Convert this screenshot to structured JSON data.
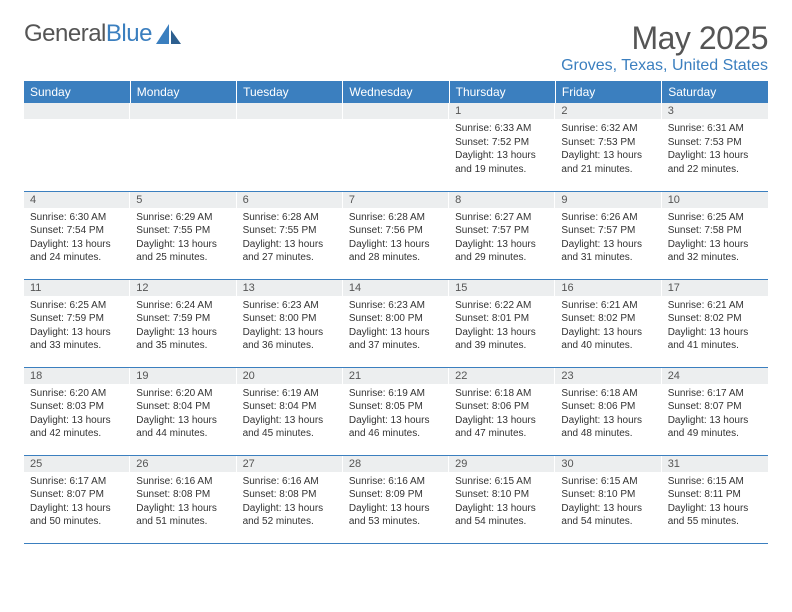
{
  "brand": {
    "part1": "General",
    "part2": "Blue"
  },
  "title": "May 2025",
  "location": "Groves, Texas, United States",
  "weekdays": [
    "Sunday",
    "Monday",
    "Tuesday",
    "Wednesday",
    "Thursday",
    "Friday",
    "Saturday"
  ],
  "colors": {
    "header_bg": "#3b7fbf",
    "header_text": "#ffffff",
    "daynum_bg": "#eceeef",
    "border": "#3b7fbf",
    "brand_blue": "#3b7fbf",
    "text": "#333333",
    "title_text": "#555555",
    "background": "#ffffff"
  },
  "weeks": [
    [
      null,
      null,
      null,
      null,
      {
        "n": "1",
        "sr": "6:33 AM",
        "ss": "7:52 PM",
        "dl": "13 hours and 19 minutes."
      },
      {
        "n": "2",
        "sr": "6:32 AM",
        "ss": "7:53 PM",
        "dl": "13 hours and 21 minutes."
      },
      {
        "n": "3",
        "sr": "6:31 AM",
        "ss": "7:53 PM",
        "dl": "13 hours and 22 minutes."
      }
    ],
    [
      {
        "n": "4",
        "sr": "6:30 AM",
        "ss": "7:54 PM",
        "dl": "13 hours and 24 minutes."
      },
      {
        "n": "5",
        "sr": "6:29 AM",
        "ss": "7:55 PM",
        "dl": "13 hours and 25 minutes."
      },
      {
        "n": "6",
        "sr": "6:28 AM",
        "ss": "7:55 PM",
        "dl": "13 hours and 27 minutes."
      },
      {
        "n": "7",
        "sr": "6:28 AM",
        "ss": "7:56 PM",
        "dl": "13 hours and 28 minutes."
      },
      {
        "n": "8",
        "sr": "6:27 AM",
        "ss": "7:57 PM",
        "dl": "13 hours and 29 minutes."
      },
      {
        "n": "9",
        "sr": "6:26 AM",
        "ss": "7:57 PM",
        "dl": "13 hours and 31 minutes."
      },
      {
        "n": "10",
        "sr": "6:25 AM",
        "ss": "7:58 PM",
        "dl": "13 hours and 32 minutes."
      }
    ],
    [
      {
        "n": "11",
        "sr": "6:25 AM",
        "ss": "7:59 PM",
        "dl": "13 hours and 33 minutes."
      },
      {
        "n": "12",
        "sr": "6:24 AM",
        "ss": "7:59 PM",
        "dl": "13 hours and 35 minutes."
      },
      {
        "n": "13",
        "sr": "6:23 AM",
        "ss": "8:00 PM",
        "dl": "13 hours and 36 minutes."
      },
      {
        "n": "14",
        "sr": "6:23 AM",
        "ss": "8:00 PM",
        "dl": "13 hours and 37 minutes."
      },
      {
        "n": "15",
        "sr": "6:22 AM",
        "ss": "8:01 PM",
        "dl": "13 hours and 39 minutes."
      },
      {
        "n": "16",
        "sr": "6:21 AM",
        "ss": "8:02 PM",
        "dl": "13 hours and 40 minutes."
      },
      {
        "n": "17",
        "sr": "6:21 AM",
        "ss": "8:02 PM",
        "dl": "13 hours and 41 minutes."
      }
    ],
    [
      {
        "n": "18",
        "sr": "6:20 AM",
        "ss": "8:03 PM",
        "dl": "13 hours and 42 minutes."
      },
      {
        "n": "19",
        "sr": "6:20 AM",
        "ss": "8:04 PM",
        "dl": "13 hours and 44 minutes."
      },
      {
        "n": "20",
        "sr": "6:19 AM",
        "ss": "8:04 PM",
        "dl": "13 hours and 45 minutes."
      },
      {
        "n": "21",
        "sr": "6:19 AM",
        "ss": "8:05 PM",
        "dl": "13 hours and 46 minutes."
      },
      {
        "n": "22",
        "sr": "6:18 AM",
        "ss": "8:06 PM",
        "dl": "13 hours and 47 minutes."
      },
      {
        "n": "23",
        "sr": "6:18 AM",
        "ss": "8:06 PM",
        "dl": "13 hours and 48 minutes."
      },
      {
        "n": "24",
        "sr": "6:17 AM",
        "ss": "8:07 PM",
        "dl": "13 hours and 49 minutes."
      }
    ],
    [
      {
        "n": "25",
        "sr": "6:17 AM",
        "ss": "8:07 PM",
        "dl": "13 hours and 50 minutes."
      },
      {
        "n": "26",
        "sr": "6:16 AM",
        "ss": "8:08 PM",
        "dl": "13 hours and 51 minutes."
      },
      {
        "n": "27",
        "sr": "6:16 AM",
        "ss": "8:08 PM",
        "dl": "13 hours and 52 minutes."
      },
      {
        "n": "28",
        "sr": "6:16 AM",
        "ss": "8:09 PM",
        "dl": "13 hours and 53 minutes."
      },
      {
        "n": "29",
        "sr": "6:15 AM",
        "ss": "8:10 PM",
        "dl": "13 hours and 54 minutes."
      },
      {
        "n": "30",
        "sr": "6:15 AM",
        "ss": "8:10 PM",
        "dl": "13 hours and 54 minutes."
      },
      {
        "n": "31",
        "sr": "6:15 AM",
        "ss": "8:11 PM",
        "dl": "13 hours and 55 minutes."
      }
    ]
  ],
  "labels": {
    "sunrise": "Sunrise:",
    "sunset": "Sunset:",
    "daylight": "Daylight:"
  }
}
